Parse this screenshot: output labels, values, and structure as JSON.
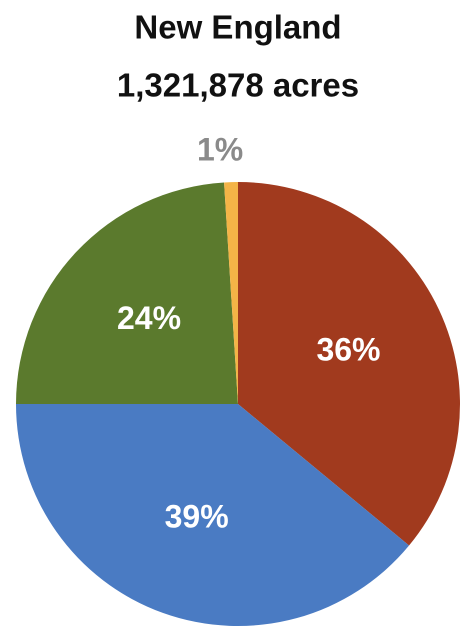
{
  "chart_data": {
    "type": "pie",
    "title": "New England",
    "subtitle": "1,321,878 acres",
    "values": [
      36,
      39,
      24,
      1
    ],
    "value_labels": [
      "36%",
      "39%",
      "24%",
      "1%"
    ],
    "colors": [
      "#a13a1e",
      "#4a7bc3",
      "#5b7a2d",
      "#f4b447"
    ]
  }
}
